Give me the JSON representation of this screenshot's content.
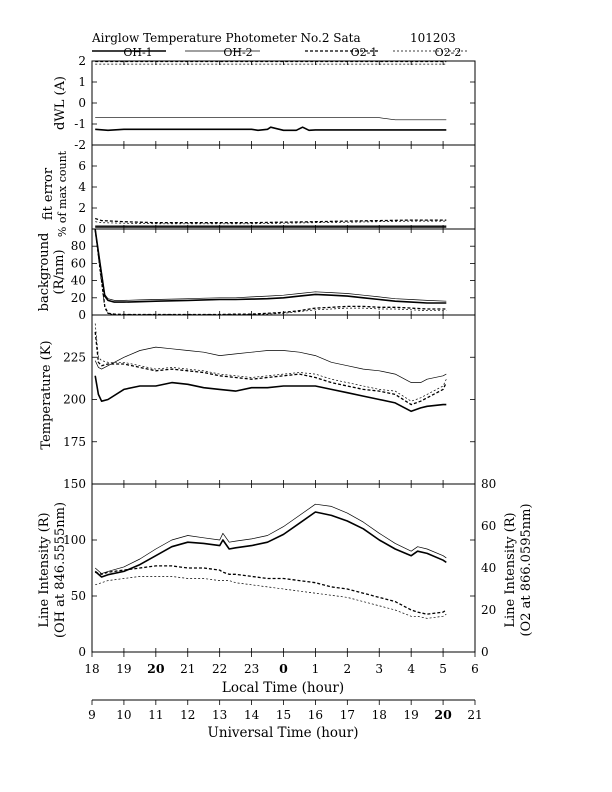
{
  "header": {
    "title": "Airglow Temperature Photometer No.2  Sata",
    "date": "101203"
  },
  "legend": {
    "oh1": "OH-1",
    "oh2": "OH-2",
    "o21": "O2-1",
    "o22": "O2-2"
  },
  "axes": {
    "x_local_label": "Local Time (hour)",
    "x_ut_label": "Universal Time (hour)",
    "x_local_ticks": [
      "18",
      "19",
      "20",
      "21",
      "22",
      "23",
      "0",
      "1",
      "2",
      "3",
      "4",
      "5",
      "6"
    ],
    "x_ut_ticks": [
      "9",
      "10",
      "11",
      "12",
      "13",
      "14",
      "15",
      "16",
      "17",
      "18",
      "19",
      "20",
      "21"
    ]
  },
  "chart_data": [
    {
      "type": "line",
      "panel": "dwl",
      "ylabel": "dWL (A)",
      "ylim": [
        -2,
        2
      ],
      "yticks": [
        "2",
        "1",
        "0",
        "-1",
        "-2"
      ],
      "x_ut": [
        9.1,
        9.5,
        10.0,
        10.5,
        11.0,
        11.5,
        12.0,
        12.5,
        13.0,
        13.5,
        14.0,
        14.2,
        14.5,
        14.6,
        15.0,
        15.4,
        15.6,
        15.8,
        16.0,
        16.5,
        17.0,
        17.5,
        18.0,
        18.5,
        19.0,
        19.5,
        20.0,
        20.1
      ],
      "series": [
        {
          "name": "OH-1",
          "style": "solid-thick",
          "values": [
            -1.25,
            -1.3,
            -1.25,
            -1.25,
            -1.25,
            -1.25,
            -1.25,
            -1.25,
            -1.25,
            -1.25,
            -1.25,
            -1.3,
            -1.25,
            -1.15,
            -1.3,
            -1.3,
            -1.15,
            -1.3,
            -1.28,
            -1.28,
            -1.28,
            -1.28,
            -1.28,
            -1.28,
            -1.28,
            -1.28,
            -1.28,
            -1.28
          ]
        },
        {
          "name": "OH-2",
          "style": "solid-thin",
          "values": [
            -0.7,
            -0.7,
            -0.7,
            -0.7,
            -0.7,
            -0.7,
            -0.7,
            -0.7,
            -0.7,
            -0.7,
            -0.7,
            -0.7,
            -0.7,
            -0.7,
            -0.7,
            -0.7,
            -0.7,
            -0.7,
            -0.7,
            -0.7,
            -0.7,
            -0.7,
            -0.7,
            -0.8,
            -0.8,
            -0.8,
            -0.8,
            -0.8
          ]
        },
        {
          "name": "O2-1",
          "style": "dashed-thick",
          "values": [
            2.0,
            2.0,
            2.0,
            2.0,
            2.0,
            2.0,
            2.0,
            2.0,
            2.0,
            2.0,
            2.0,
            2.0,
            2.0,
            2.0,
            2.0,
            2.0,
            2.0,
            2.0,
            2.0,
            2.0,
            2.0,
            2.0,
            2.0,
            2.0,
            2.0,
            2.0,
            2.0,
            2.0
          ]
        },
        {
          "name": "O2-2",
          "style": "dashed-thin",
          "values": [
            1.85,
            1.85,
            1.85,
            1.85,
            1.85,
            1.85,
            1.85,
            1.85,
            1.85,
            1.85,
            1.85,
            1.85,
            1.85,
            1.85,
            1.85,
            1.85,
            1.85,
            1.85,
            1.85,
            1.85,
            1.85,
            1.85,
            1.85,
            1.85,
            1.85,
            1.85,
            1.85,
            1.85
          ]
        }
      ]
    },
    {
      "type": "line",
      "panel": "fit",
      "ylabel": "fit error",
      "ylabel2": "% of max count",
      "ylim": [
        0,
        8
      ],
      "yticks": [
        "6",
        "4",
        "2",
        "0"
      ],
      "x_ut": [
        9.1,
        9.3,
        10.0,
        11.0,
        12.0,
        13.0,
        14.0,
        15.0,
        16.0,
        17.0,
        18.0,
        19.0,
        20.1
      ],
      "series": [
        {
          "name": "OH-1",
          "style": "solid-thick",
          "values": [
            0.2,
            0.2,
            0.2,
            0.2,
            0.2,
            0.2,
            0.2,
            0.2,
            0.2,
            0.2,
            0.2,
            0.2,
            0.2
          ]
        },
        {
          "name": "OH-2",
          "style": "solid-thin",
          "values": [
            0.3,
            0.3,
            0.3,
            0.3,
            0.3,
            0.3,
            0.3,
            0.3,
            0.3,
            0.3,
            0.3,
            0.3,
            0.3
          ]
        },
        {
          "name": "O2-1",
          "style": "dashed-thick",
          "values": [
            1.0,
            0.8,
            0.7,
            0.6,
            0.6,
            0.6,
            0.6,
            0.65,
            0.7,
            0.75,
            0.8,
            0.85,
            0.85
          ]
        },
        {
          "name": "O2-2",
          "style": "dashed-thin",
          "values": [
            0.7,
            0.6,
            0.55,
            0.5,
            0.5,
            0.5,
            0.5,
            0.55,
            0.6,
            0.65,
            0.7,
            0.75,
            0.75
          ]
        }
      ]
    },
    {
      "type": "line",
      "panel": "background",
      "ylabel": "background",
      "ylabel2": "(R/nm)",
      "ylim": [
        0,
        100
      ],
      "yticks": [
        "80",
        "60",
        "40",
        "20",
        "0"
      ],
      "x_ut": [
        9.1,
        9.25,
        9.4,
        9.5,
        9.7,
        10.0,
        10.5,
        11.0,
        11.5,
        12.0,
        12.5,
        13.0,
        13.5,
        14.0,
        14.5,
        15.0,
        15.5,
        16.0,
        16.5,
        17.0,
        17.5,
        18.0,
        18.5,
        19.0,
        19.5,
        20.1
      ],
      "series": [
        {
          "name": "OH-1",
          "style": "solid-thick",
          "values": [
            100,
            60,
            22,
            17,
            15,
            15,
            15.5,
            16,
            16.5,
            17,
            17.5,
            18,
            18,
            18.5,
            19,
            20,
            22,
            24,
            23,
            22,
            20,
            18,
            16,
            15,
            14,
            14
          ]
        },
        {
          "name": "OH-2",
          "style": "solid-thin",
          "values": [
            100,
            62,
            24,
            19,
            17,
            17,
            17.5,
            18,
            18.5,
            19,
            19.5,
            20,
            20,
            21,
            22,
            23,
            25,
            27,
            26,
            25,
            23,
            21,
            19,
            18,
            17,
            16
          ]
        },
        {
          "name": "O2-1",
          "style": "dashed-thick",
          "values": [
            100,
            55,
            10,
            2,
            1,
            0.5,
            0.5,
            0.5,
            0.5,
            0.5,
            0.5,
            0.5,
            1,
            1,
            2,
            3,
            5,
            8,
            9,
            10,
            10,
            9,
            9,
            8,
            7,
            7
          ]
        },
        {
          "name": "O2-2",
          "style": "dashed-thin",
          "values": [
            100,
            50,
            8,
            1.5,
            0.5,
            0.3,
            0.3,
            0.3,
            0.3,
            0.3,
            0.3,
            0.3,
            0.5,
            0.5,
            1,
            2,
            4,
            6,
            7,
            8,
            8,
            7,
            7,
            6,
            5,
            5
          ]
        }
      ]
    },
    {
      "type": "line",
      "panel": "temperature",
      "ylabel": "Temperature (K)",
      "ylim": [
        150,
        250
      ],
      "yticks": [
        "225",
        "200",
        "175"
      ],
      "x_ut": [
        9.1,
        9.2,
        9.3,
        9.5,
        10.0,
        10.5,
        11.0,
        11.5,
        12.0,
        12.5,
        13.0,
        13.5,
        14.0,
        14.5,
        15.0,
        15.5,
        16.0,
        16.5,
        17.0,
        17.5,
        18.0,
        18.5,
        19.0,
        19.3,
        19.5,
        20.0,
        20.1
      ],
      "series": [
        {
          "name": "OH-1",
          "style": "solid-thick",
          "values": [
            214,
            203,
            199,
            200,
            206,
            208,
            208,
            210,
            209,
            207,
            206,
            205,
            207,
            207,
            208,
            208,
            208,
            206,
            204,
            202,
            200,
            198,
            193,
            195,
            196,
            197,
            197
          ]
        },
        {
          "name": "OH-2",
          "style": "solid-thin",
          "values": [
            223,
            219,
            218,
            220,
            225,
            229,
            231,
            230,
            229,
            228,
            226,
            227,
            228,
            229,
            229,
            228,
            226,
            222,
            220,
            218,
            217,
            215,
            210,
            210,
            212,
            214,
            215
          ]
        },
        {
          "name": "O2-1",
          "style": "dashed-thick",
          "values": [
            240,
            222,
            220,
            221,
            221,
            219,
            217,
            218,
            217,
            216,
            214,
            213,
            212,
            213,
            214,
            215,
            213,
            210,
            208,
            206,
            205,
            203,
            197,
            199,
            201,
            206,
            210
          ]
        },
        {
          "name": "O2-2",
          "style": "dashed-thin",
          "values": [
            245,
            225,
            223,
            222,
            222,
            220,
            218,
            219,
            218,
            217,
            215,
            214,
            213,
            214,
            215,
            216,
            215,
            212,
            210,
            208,
            206,
            205,
            199,
            201,
            203,
            208,
            212
          ]
        }
      ]
    },
    {
      "type": "line",
      "panel": "intensity",
      "ylabel": "Line Intensity (R)",
      "ylabel2": "(OH at 846.5555nm)",
      "ylabel_right": "Line Intensity (R)",
      "ylabel_right2": "(O2 at 866.0595nm)",
      "ylim": [
        0,
        150
      ],
      "ylim_right": [
        0,
        80
      ],
      "yticks": [
        "150",
        "100",
        "50",
        "0"
      ],
      "yticks_right": [
        "80",
        "60",
        "40",
        "20",
        "0"
      ],
      "x_ut": [
        9.1,
        9.3,
        9.5,
        10.0,
        10.5,
        11.0,
        11.5,
        12.0,
        12.5,
        13.0,
        13.1,
        13.3,
        13.5,
        14.0,
        14.5,
        15.0,
        15.5,
        16.0,
        16.5,
        17.0,
        17.5,
        18.0,
        18.5,
        19.0,
        19.2,
        19.5,
        20.0,
        20.1
      ],
      "series": [
        {
          "name": "OH-1",
          "style": "solid-thick",
          "axis": "left",
          "values": [
            72,
            67,
            69,
            72,
            78,
            86,
            94,
            98,
            97,
            95,
            100,
            92,
            93,
            95,
            98,
            105,
            115,
            125,
            122,
            117,
            110,
            100,
            92,
            86,
            90,
            88,
            82,
            80
          ]
        },
        {
          "name": "OH-2",
          "style": "solid-thin",
          "axis": "left",
          "values": [
            75,
            70,
            72,
            76,
            83,
            92,
            100,
            104,
            102,
            100,
            106,
            98,
            99,
            101,
            104,
            112,
            122,
            132,
            130,
            124,
            116,
            106,
            97,
            90,
            94,
            92,
            86,
            84
          ]
        },
        {
          "name": "O2-1",
          "style": "dashed-thick",
          "axis": "right",
          "values": [
            38,
            37,
            38,
            39,
            40,
            41,
            41,
            40,
            40,
            39,
            38,
            37,
            37,
            36,
            35,
            35,
            34,
            33,
            31,
            30,
            28,
            26,
            24,
            20,
            19,
            18,
            19,
            20
          ]
        },
        {
          "name": "O2-2",
          "style": "dashed-thin",
          "axis": "right",
          "values": [
            32,
            33,
            34,
            35,
            36,
            36,
            36,
            35,
            35,
            34,
            34,
            34,
            33,
            32,
            31,
            30,
            29,
            28,
            27,
            26,
            24,
            22,
            20,
            17,
            17,
            16,
            17,
            18
          ]
        }
      ]
    }
  ]
}
